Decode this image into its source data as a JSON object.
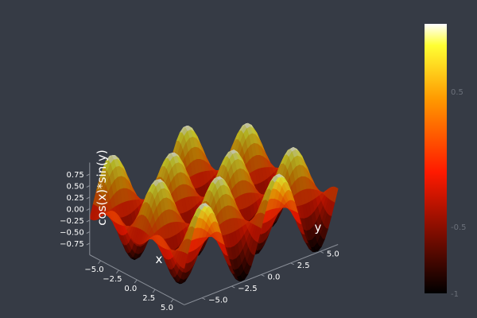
{
  "chart_data": {
    "type": "surface",
    "z_expression": "cos(x)*sin(y)",
    "x": {
      "min": -6.5,
      "max": 6.5,
      "ticks": [
        -5,
        -2.5,
        0,
        2.5,
        5
      ],
      "tick_labels": [
        "−5.0",
        "−2.5",
        "0.0",
        "2.5",
        "5.0"
      ]
    },
    "y": {
      "min": -6.5,
      "max": 6.5,
      "ticks": [
        -5,
        -2.5,
        0,
        2.5,
        5
      ],
      "tick_labels": [
        "−5.0",
        "−2.5",
        "0.0",
        "2.5",
        "5.0"
      ]
    },
    "z": {
      "min": -1,
      "max": 1,
      "ticks": [
        -0.75,
        -0.5,
        -0.25,
        0,
        0.25,
        0.5,
        0.75
      ],
      "tick_labels": [
        "−0.75",
        "−0.50",
        "−0.25",
        "0.00",
        "0.25",
        "0.50",
        "0.75"
      ]
    },
    "xlabel": "x",
    "ylabel": "y",
    "zlabel": "cos(x)*sin(y)",
    "colormap": [
      "#000000",
      "#ff1a00",
      "#ff9900",
      "#ffff33",
      "#ffffff"
    ],
    "colorbar": {
      "range": [
        -1,
        1
      ],
      "ticks": [
        0.5,
        -0.5,
        -1
      ],
      "tick_labels": [
        "0.5",
        "-0.5",
        "-1"
      ]
    },
    "background": "#363b45",
    "grid": false
  }
}
